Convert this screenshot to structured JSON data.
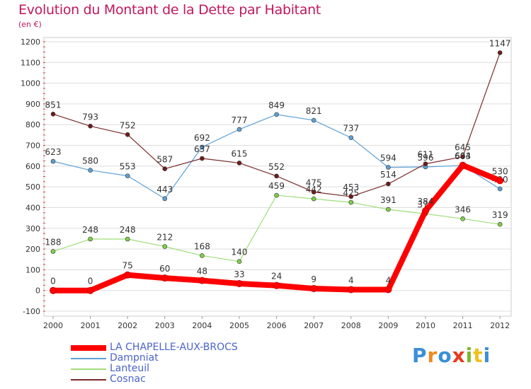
{
  "title": "Evolution du Montant de la Dette par Habitant",
  "subtitle": "(en €)",
  "brand": {
    "text": "Proxiti",
    "colors": [
      "#3a8fd6",
      "#f08a1c",
      "#3a8fd6",
      "#e63c1e",
      "#7ab82e",
      "#f0c020",
      "#3a8fd6"
    ]
  },
  "colors": {
    "background": "#ffffff",
    "plot_border": "#cccccc",
    "grid": "#dddddd",
    "axis_text": "#333333",
    "title": "#c0185e",
    "legend_text": "#4a63c9"
  },
  "chart_data": {
    "type": "line",
    "title": "Evolution du Montant de la Dette par Habitant",
    "subtitle": "(en €)",
    "xlabel": "",
    "ylabel": "",
    "x": [
      "2000",
      "2001",
      "2002",
      "2003",
      "2004",
      "2005",
      "2006",
      "2007",
      "2008",
      "2009",
      "2010",
      "2011",
      "2012"
    ],
    "yticks": [
      -100,
      0,
      100,
      200,
      300,
      400,
      500,
      600,
      700,
      800,
      900,
      1000,
      1100,
      1200
    ],
    "ylim": [
      -100,
      1200
    ],
    "grid": "horizontal",
    "legend": "bottom-left",
    "series": [
      {
        "name": "Dampniat",
        "color": "#5fa1d6",
        "marker": "#5fa1d6",
        "width": 1.2,
        "values": [
          623,
          580,
          553,
          443,
          692,
          777,
          849,
          821,
          737,
          594,
          596,
          603,
          490
        ],
        "labels": [
          "623",
          "580",
          "553",
          "443",
          "692",
          "777",
          "849",
          "821",
          "737",
          "594",
          "596",
          "603",
          "490"
        ]
      },
      {
        "name": "Lanteuil",
        "color": "#9edd7a",
        "marker": "#7fcf4a",
        "width": 1.2,
        "values": [
          188,
          248,
          248,
          212,
          168,
          140,
          459,
          442,
          425,
          391,
          370,
          346,
          319
        ],
        "labels": [
          "188",
          "248",
          "248",
          "212",
          "168",
          "140",
          "459",
          "442",
          "425",
          "391",
          "370",
          "346",
          "319"
        ]
      },
      {
        "name": "Cosnac",
        "color": "#7a2a2a",
        "marker": "#6e1c1c",
        "width": 1.2,
        "values": [
          851,
          793,
          752,
          587,
          637,
          615,
          552,
          475,
          453,
          514,
          611,
          645,
          1147
        ],
        "labels": [
          "851",
          "793",
          "752",
          "587",
          "637",
          "615",
          "552",
          "475",
          "453",
          "514",
          "611",
          "645",
          "1147"
        ]
      },
      {
        "name": "LA CHAPELLE-AUX-BROCS",
        "color": "#ff0000",
        "marker": "#ff0000",
        "width": 8,
        "values": [
          0,
          0,
          75,
          60,
          48,
          33,
          24,
          9,
          4,
          4,
          384,
          604,
          530
        ],
        "labels": [
          "0",
          "0",
          "75",
          "60",
          "48",
          "33",
          "24",
          "9",
          "4",
          "4",
          "384",
          "604",
          "530"
        ]
      }
    ],
    "legend_order": [
      "LA CHAPELLE-AUX-BROCS",
      "Dampniat",
      "Lanteuil",
      "Cosnac"
    ]
  }
}
